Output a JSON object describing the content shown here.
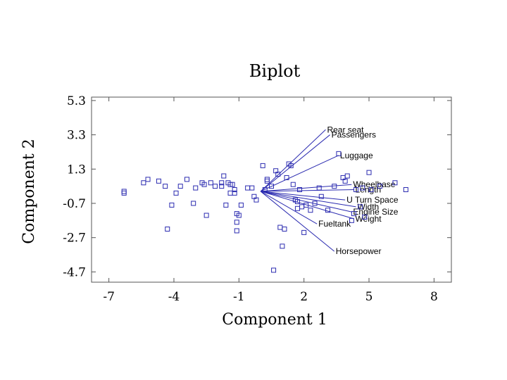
{
  "chart_data": {
    "type": "scatter",
    "title": "Biplot",
    "xlabel": "Component 1",
    "ylabel": "Component 2",
    "xlim": [
      -7.8,
      8.8
    ],
    "ylim": [
      -5.3,
      5.5
    ],
    "xticks": [
      -7,
      -4,
      -1,
      2,
      5,
      8
    ],
    "xtick_labels": [
      "-7",
      "-4",
      "-1",
      "2",
      "5",
      "8"
    ],
    "yticks": [
      5.3,
      3.3,
      1.3,
      -0.7,
      -2.7,
      -4.7
    ],
    "ytick_labels": [
      "5.3",
      "3.3",
      "1.3",
      "-0.7",
      "-2.7",
      "-4.7"
    ],
    "grid": false,
    "color": "#2b2bb0",
    "vector_origin": [
      0.0,
      0.0
    ],
    "vectors": [
      {
        "name": "Rear seat",
        "x": 3.0,
        "y": 3.6
      },
      {
        "name": "Passengers",
        "x": 3.2,
        "y": 3.3
      },
      {
        "name": "Luggage",
        "x": 3.6,
        "y": 2.1
      },
      {
        "name": "Wheelbase",
        "x": 4.2,
        "y": 0.4
      },
      {
        "name": "Length",
        "x": 4.3,
        "y": 0.1
      },
      {
        "name": "U Turn Space",
        "x": 3.9,
        "y": -0.5
      },
      {
        "name": "Width",
        "x": 4.4,
        "y": -0.9
      },
      {
        "name": "Engine Size",
        "x": 4.2,
        "y": -1.2
      },
      {
        "name": "Weight",
        "x": 4.3,
        "y": -1.6
      },
      {
        "name": "Fueltank",
        "x": 2.6,
        "y": -1.9
      },
      {
        "name": "Horsepower",
        "x": 3.4,
        "y": -3.5
      }
    ],
    "points": [
      {
        "x": -6.3,
        "y": 0.0
      },
      {
        "x": -6.3,
        "y": -0.1
      },
      {
        "x": -5.4,
        "y": 0.5
      },
      {
        "x": -5.2,
        "y": 0.7
      },
      {
        "x": -4.7,
        "y": 0.6
      },
      {
        "x": -4.4,
        "y": 0.3
      },
      {
        "x": -4.3,
        "y": -2.2
      },
      {
        "x": -4.1,
        "y": -0.8
      },
      {
        "x": -3.9,
        "y": -0.1
      },
      {
        "x": -3.7,
        "y": 0.3
      },
      {
        "x": -3.4,
        "y": 0.7
      },
      {
        "x": -3.1,
        "y": -0.7
      },
      {
        "x": -3.0,
        "y": 0.2
      },
      {
        "x": -2.7,
        "y": 0.5
      },
      {
        "x": -2.6,
        "y": 0.4
      },
      {
        "x": -2.5,
        "y": -1.4
      },
      {
        "x": -2.3,
        "y": 0.5
      },
      {
        "x": -2.1,
        "y": 0.3
      },
      {
        "x": -1.8,
        "y": 0.3
      },
      {
        "x": -1.8,
        "y": 0.5
      },
      {
        "x": -1.7,
        "y": 0.9
      },
      {
        "x": -1.6,
        "y": -0.8
      },
      {
        "x": -1.5,
        "y": 0.5
      },
      {
        "x": -1.4,
        "y": -0.1
      },
      {
        "x": -1.4,
        "y": 0.4
      },
      {
        "x": -1.3,
        "y": 0.4
      },
      {
        "x": -1.2,
        "y": 0.1
      },
      {
        "x": -1.2,
        "y": -0.1
      },
      {
        "x": -1.1,
        "y": -1.3
      },
      {
        "x": -1.0,
        "y": -1.4
      },
      {
        "x": -1.1,
        "y": -1.8
      },
      {
        "x": -1.1,
        "y": -2.3
      },
      {
        "x": -0.9,
        "y": -0.8
      },
      {
        "x": -0.6,
        "y": 0.2
      },
      {
        "x": -0.4,
        "y": 0.2
      },
      {
        "x": -0.3,
        "y": -0.3
      },
      {
        "x": -0.2,
        "y": -0.5
      },
      {
        "x": 0.3,
        "y": 0.7
      },
      {
        "x": 0.1,
        "y": 1.5
      },
      {
        "x": 0.2,
        "y": 0.1
      },
      {
        "x": 0.5,
        "y": 0.3
      },
      {
        "x": 0.3,
        "y": 0.6
      },
      {
        "x": 0.6,
        "y": -4.6
      },
      {
        "x": 0.7,
        "y": 1.2
      },
      {
        "x": 0.8,
        "y": 1.0
      },
      {
        "x": 0.9,
        "y": -2.1
      },
      {
        "x": 1.0,
        "y": -3.2
      },
      {
        "x": 1.1,
        "y": -2.2
      },
      {
        "x": 1.2,
        "y": 0.8
      },
      {
        "x": 1.3,
        "y": 1.6
      },
      {
        "x": 1.4,
        "y": 1.5
      },
      {
        "x": 1.5,
        "y": 0.4
      },
      {
        "x": 1.6,
        "y": -0.5
      },
      {
        "x": 1.7,
        "y": -0.6
      },
      {
        "x": 1.7,
        "y": -1.0
      },
      {
        "x": 1.8,
        "y": 0.1
      },
      {
        "x": 1.9,
        "y": -0.9
      },
      {
        "x": 2.0,
        "y": -2.4
      },
      {
        "x": 2.1,
        "y": -0.8
      },
      {
        "x": 2.3,
        "y": -1.1
      },
      {
        "x": 2.5,
        "y": -0.7
      },
      {
        "x": 2.7,
        "y": 0.2
      },
      {
        "x": 2.8,
        "y": -0.3
      },
      {
        "x": 3.1,
        "y": -1.1
      },
      {
        "x": 3.4,
        "y": 0.3
      },
      {
        "x": 3.6,
        "y": 2.2
      },
      {
        "x": 3.8,
        "y": 0.8
      },
      {
        "x": 3.9,
        "y": 0.6
      },
      {
        "x": 4.0,
        "y": 0.9
      },
      {
        "x": 4.2,
        "y": -1.7
      },
      {
        "x": 4.3,
        "y": -1.3
      },
      {
        "x": 4.4,
        "y": 0.1
      },
      {
        "x": 4.6,
        "y": -0.9
      },
      {
        "x": 4.8,
        "y": -1.5
      },
      {
        "x": 4.7,
        "y": 0.2
      },
      {
        "x": 5.0,
        "y": 1.1
      },
      {
        "x": 5.1,
        "y": 0.1
      },
      {
        "x": 5.5,
        "y": 0.3
      },
      {
        "x": 6.2,
        "y": 0.5
      },
      {
        "x": 6.7,
        "y": 0.1
      }
    ]
  }
}
